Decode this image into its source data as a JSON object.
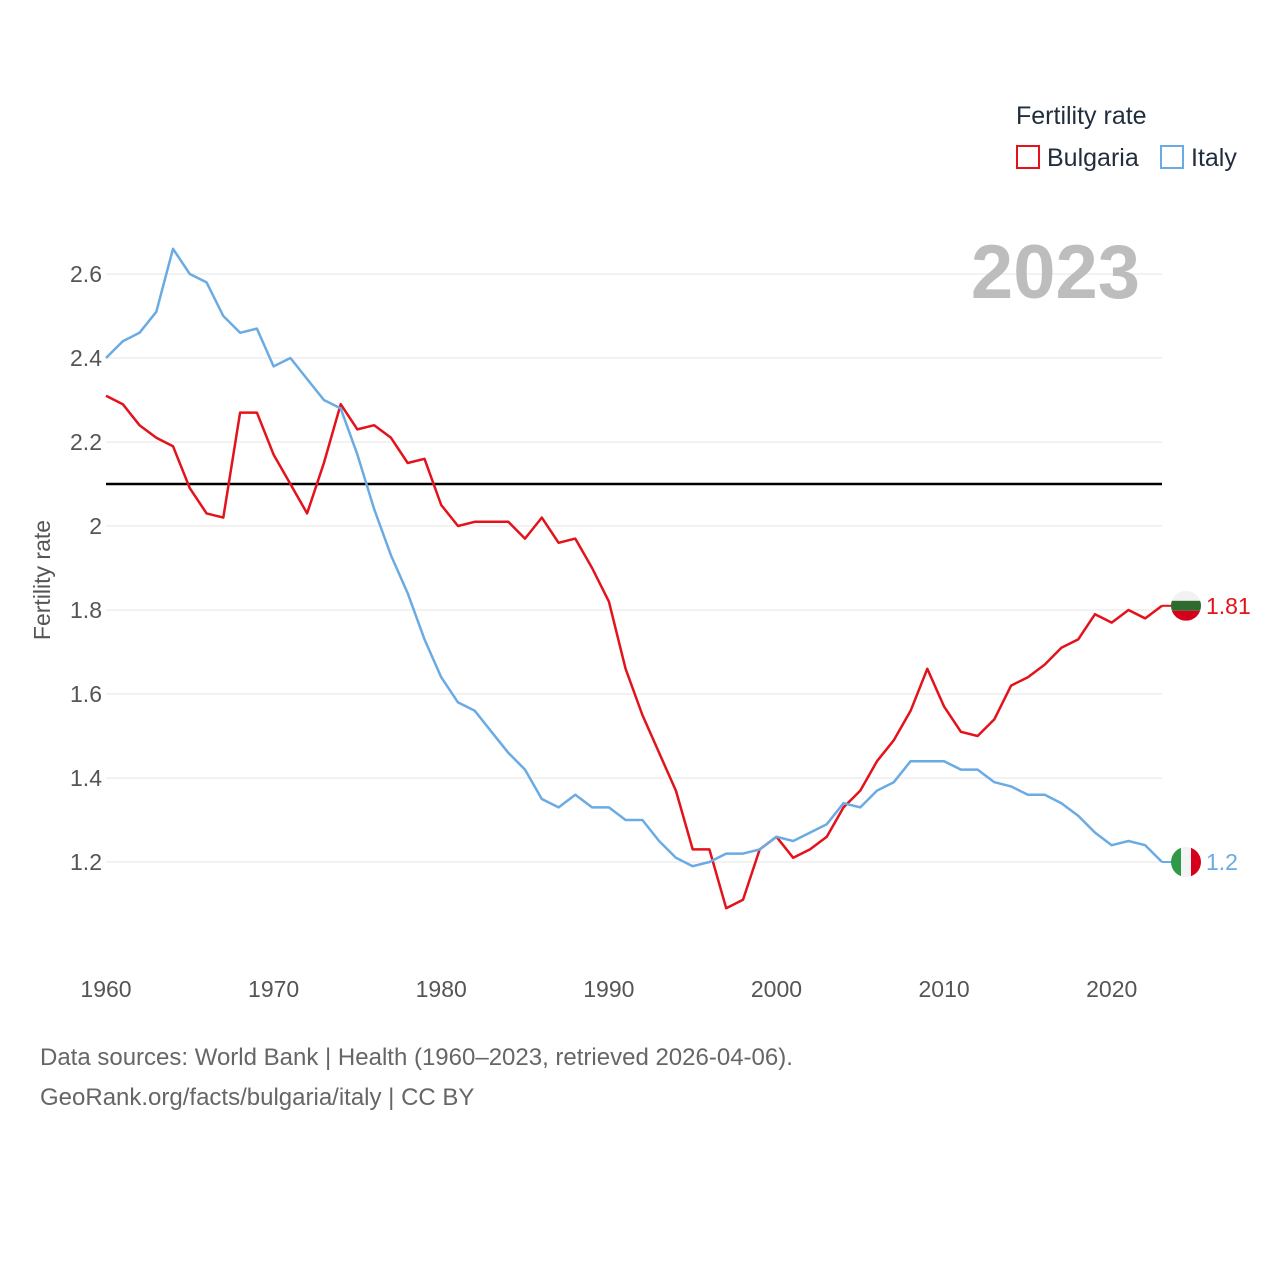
{
  "chart_data": {
    "type": "line",
    "title": "",
    "year_label": "2023",
    "ylabel": "Fertility rate",
    "xlabel": "",
    "xlim": [
      1960,
      2023
    ],
    "ylim": [
      1.05,
      2.75
    ],
    "x_ticks": [
      1960,
      1970,
      1980,
      1990,
      2000,
      2010,
      2020
    ],
    "y_ticks": [
      1.2,
      1.4,
      1.6,
      1.8,
      2.0,
      2.2,
      2.4,
      2.6
    ],
    "y_tick_labels": [
      "1.2",
      "1.4",
      "1.6",
      "1.8",
      "2",
      "2.2",
      "2.4",
      "2.6"
    ],
    "reference_line": {
      "value": 2.1,
      "color": "#000000"
    },
    "legend": {
      "title": "Fertility rate",
      "position": "top-right"
    },
    "series": [
      {
        "name": "Bulgaria",
        "color": "#e3121b",
        "end_label": "1.81",
        "flag": "bulgaria-flag",
        "x": [
          1960,
          1961,
          1962,
          1963,
          1964,
          1965,
          1966,
          1967,
          1968,
          1969,
          1970,
          1971,
          1972,
          1973,
          1974,
          1975,
          1976,
          1977,
          1978,
          1979,
          1980,
          1981,
          1982,
          1983,
          1984,
          1985,
          1986,
          1987,
          1988,
          1989,
          1990,
          1991,
          1992,
          1993,
          1994,
          1995,
          1996,
          1997,
          1998,
          1999,
          2000,
          2001,
          2002,
          2003,
          2004,
          2005,
          2006,
          2007,
          2008,
          2009,
          2010,
          2011,
          2012,
          2013,
          2014,
          2015,
          2016,
          2017,
          2018,
          2019,
          2020,
          2021,
          2022,
          2023
        ],
        "values": [
          2.31,
          2.29,
          2.24,
          2.21,
          2.19,
          2.09,
          2.03,
          2.02,
          2.27,
          2.27,
          2.17,
          2.1,
          2.03,
          2.15,
          2.29,
          2.23,
          2.24,
          2.21,
          2.15,
          2.16,
          2.05,
          2.0,
          2.01,
          2.01,
          2.01,
          1.97,
          2.02,
          1.96,
          1.97,
          1.9,
          1.82,
          1.66,
          1.55,
          1.46,
          1.37,
          1.23,
          1.23,
          1.09,
          1.11,
          1.23,
          1.26,
          1.21,
          1.23,
          1.26,
          1.33,
          1.37,
          1.44,
          1.49,
          1.56,
          1.66,
          1.57,
          1.51,
          1.5,
          1.54,
          1.62,
          1.64,
          1.67,
          1.71,
          1.73,
          1.79,
          1.77,
          1.8,
          1.78,
          1.81
        ]
      },
      {
        "name": "Italy",
        "color": "#6aabe4",
        "end_label": "1.2",
        "flag": "italy-flag",
        "x": [
          1960,
          1961,
          1962,
          1963,
          1964,
          1965,
          1966,
          1967,
          1968,
          1969,
          1970,
          1971,
          1972,
          1973,
          1974,
          1975,
          1976,
          1977,
          1978,
          1979,
          1980,
          1981,
          1982,
          1983,
          1984,
          1985,
          1986,
          1987,
          1988,
          1989,
          1990,
          1991,
          1992,
          1993,
          1994,
          1995,
          1996,
          1997,
          1998,
          1999,
          2000,
          2001,
          2002,
          2003,
          2004,
          2005,
          2006,
          2007,
          2008,
          2009,
          2010,
          2011,
          2012,
          2013,
          2014,
          2015,
          2016,
          2017,
          2018,
          2019,
          2020,
          2021,
          2022,
          2023
        ],
        "values": [
          2.4,
          2.44,
          2.46,
          2.51,
          2.66,
          2.6,
          2.58,
          2.5,
          2.46,
          2.47,
          2.38,
          2.4,
          2.35,
          2.3,
          2.28,
          2.17,
          2.04,
          1.93,
          1.84,
          1.73,
          1.64,
          1.58,
          1.56,
          1.51,
          1.46,
          1.42,
          1.35,
          1.33,
          1.36,
          1.33,
          1.33,
          1.3,
          1.3,
          1.25,
          1.21,
          1.19,
          1.2,
          1.22,
          1.22,
          1.23,
          1.26,
          1.25,
          1.27,
          1.29,
          1.34,
          1.33,
          1.37,
          1.39,
          1.44,
          1.44,
          1.44,
          1.42,
          1.42,
          1.39,
          1.38,
          1.36,
          1.36,
          1.34,
          1.31,
          1.27,
          1.24,
          1.25,
          1.24,
          1.2
        ]
      }
    ]
  },
  "footer": {
    "line1": "Data sources: World Bank | Health (1960–2023, retrieved 2026-04-06).",
    "line2": "GeoRank.org/facts/bulgaria/italy | CC BY"
  }
}
